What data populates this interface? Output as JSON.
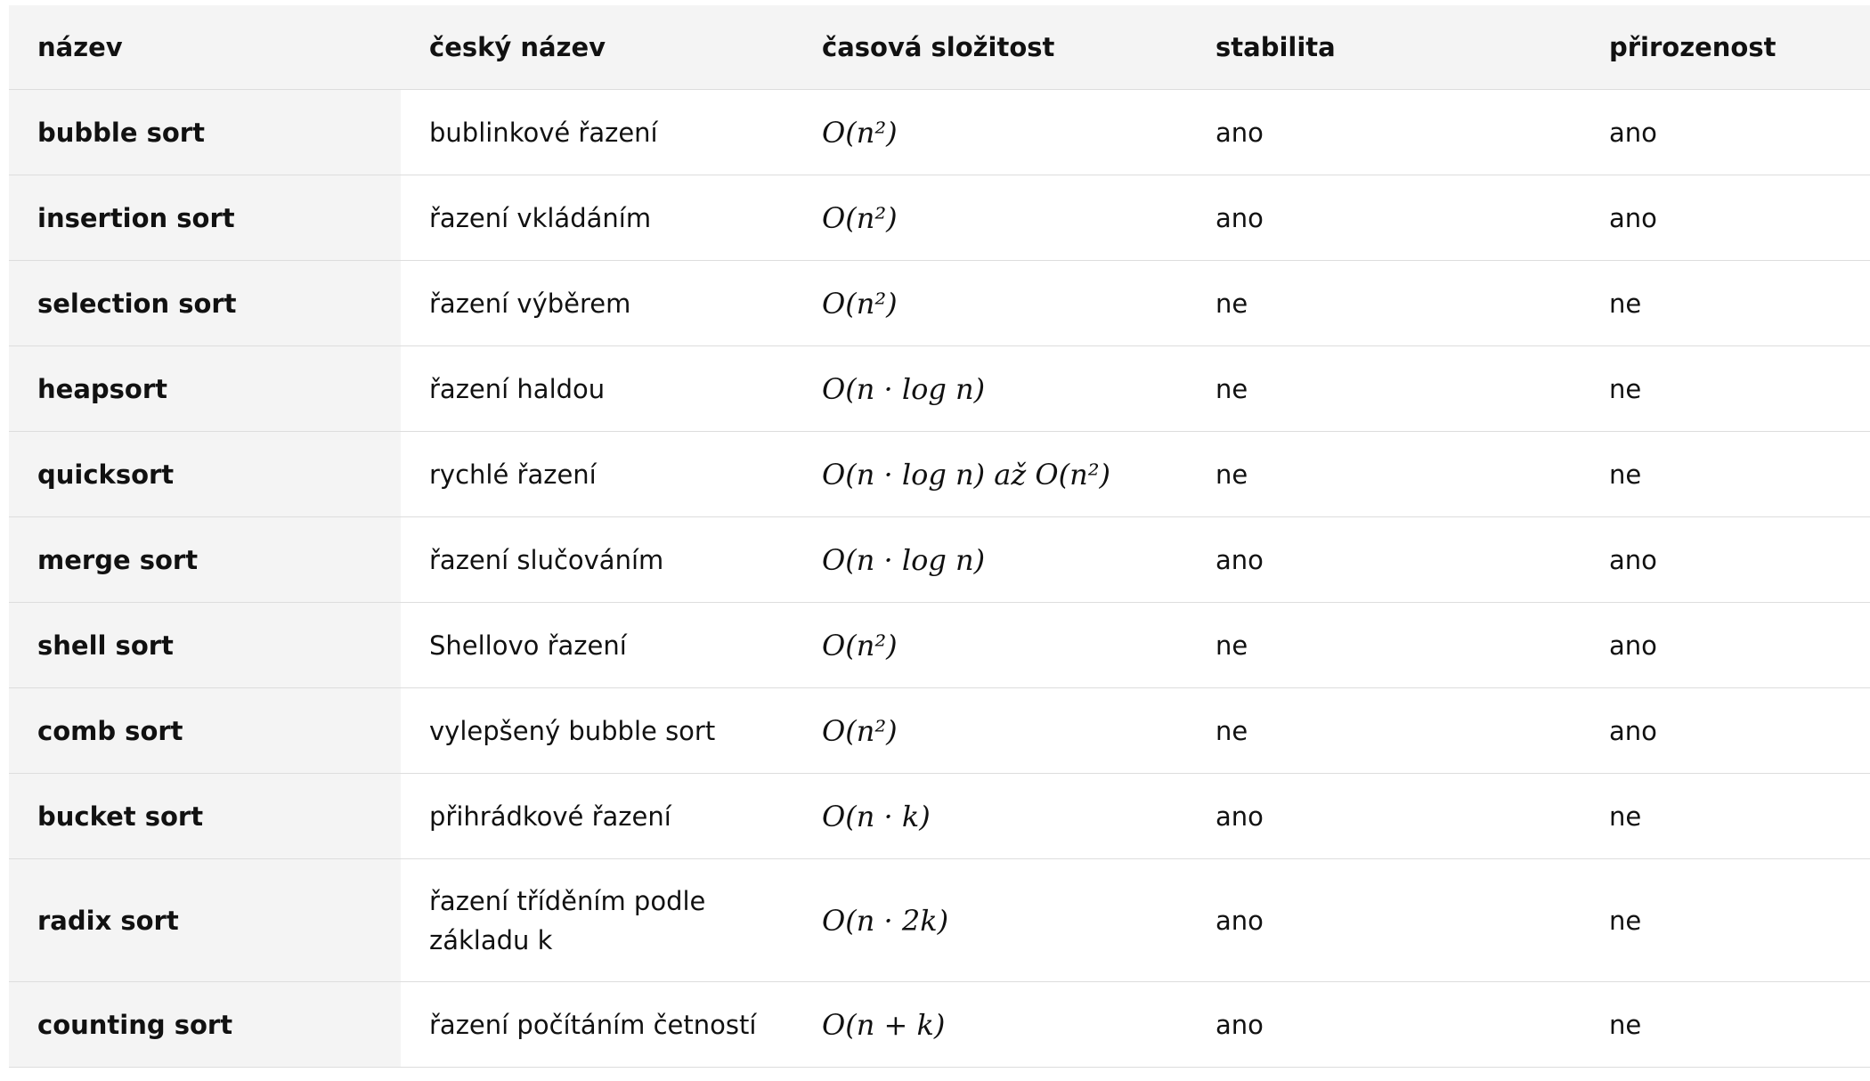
{
  "table": {
    "headers": [
      "název",
      "český název",
      "časová složitost",
      "stabilita",
      "přirozenost"
    ],
    "rows": [
      {
        "name": "bubble sort",
        "czech": "bublinkové řazení",
        "complexity": "O(n²)",
        "stable": "ano",
        "natural": "ano"
      },
      {
        "name": "insertion sort",
        "czech": "řazení vkládáním",
        "complexity": "O(n²)",
        "stable": "ano",
        "natural": "ano"
      },
      {
        "name": "selection sort",
        "czech": "řazení výběrem",
        "complexity": "O(n²)",
        "stable": "ne",
        "natural": "ne"
      },
      {
        "name": "heapsort",
        "czech": "řazení haldou",
        "complexity": "O(n · log n)",
        "stable": "ne",
        "natural": "ne"
      },
      {
        "name": "quicksort",
        "czech": "rychlé řazení",
        "complexity": "O(n · log n) až O(n²)",
        "stable": "ne",
        "natural": "ne"
      },
      {
        "name": "merge sort",
        "czech": "řazení slučováním",
        "complexity": "O(n · log n)",
        "stable": "ano",
        "natural": "ano"
      },
      {
        "name": "shell sort",
        "czech": "Shellovo řazení",
        "complexity": "O(n²)",
        "stable": "ne",
        "natural": "ano"
      },
      {
        "name": "comb sort",
        "czech": "vylepšený bubble sort",
        "complexity": "O(n²)",
        "stable": "ne",
        "natural": "ano"
      },
      {
        "name": "bucket sort",
        "czech": "přihrádkové řazení",
        "complexity": "O(n · k)",
        "stable": "ano",
        "natural": "ne"
      },
      {
        "name": "radix sort",
        "czech": "řazení tříděním podle základu k",
        "complexity": "O(n · 2k)",
        "stable": "ano",
        "natural": "ne"
      },
      {
        "name": "counting sort",
        "czech": "řazení počítáním četností",
        "complexity": "O(n + k)",
        "stable": "ano",
        "natural": "ne"
      }
    ]
  }
}
